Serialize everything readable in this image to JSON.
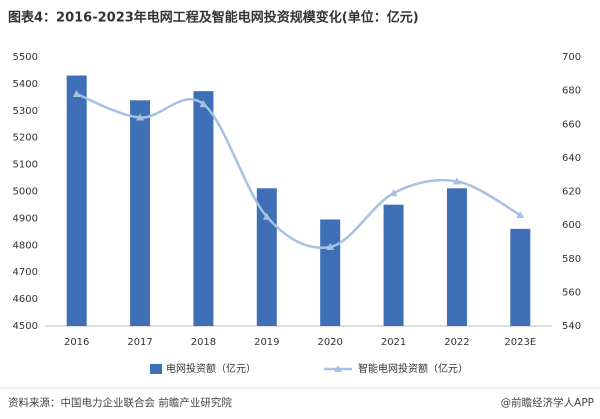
{
  "chart_data": {
    "type": "bar-line",
    "title": "图表4：2016-2023年电网工程及智能电网投资规模变化(单位：亿元)",
    "categories": [
      "2016",
      "2017",
      "2018",
      "2019",
      "2020",
      "2021",
      "2022",
      "2023E"
    ],
    "series": [
      {
        "name": "电网投资额（亿元）",
        "type": "bar",
        "color": "#3f6fb6",
        "values": [
          5431,
          5339,
          5373,
          5012,
          4896,
          4951,
          5012,
          4861
        ]
      },
      {
        "name": "智能电网投资额（亿元）",
        "type": "line",
        "axis": "y2",
        "color": "#a7c1e3",
        "values": [
          678,
          664,
          672,
          605,
          587,
          619,
          626,
          606
        ]
      }
    ],
    "ylim": [
      4500,
      5500
    ],
    "yticks": [
      4500,
      4600,
      4700,
      4800,
      4900,
      5000,
      5100,
      5200,
      5300,
      5400,
      5500
    ],
    "y2lim": [
      540,
      700
    ],
    "y2ticks": [
      540,
      560,
      580,
      600,
      620,
      640,
      660,
      680,
      700
    ],
    "legend": "bottom",
    "source": "资料来源：中国电力企业联合会 前瞻产业研究院",
    "brand": "@前瞻经济学人APP"
  }
}
